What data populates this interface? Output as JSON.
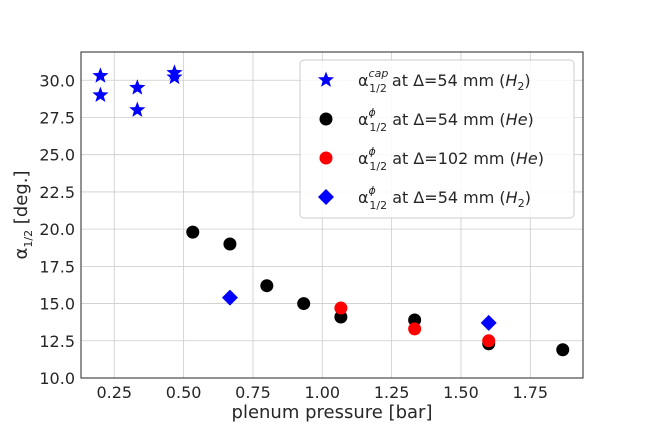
{
  "chart_data": {
    "type": "scatter",
    "xlabel": "plenum pressure [bar]",
    "ylabel": {
      "base": "α",
      "sub": "1/2",
      "rest": " [deg.]"
    },
    "xlim": [
      0.13,
      1.94
    ],
    "ylim": [
      10.0,
      31.9
    ],
    "xticks": [
      0.25,
      0.5,
      0.75,
      1.0,
      1.25,
      1.5,
      1.75
    ],
    "xtick_labels": [
      "0.25",
      "0.50",
      "0.75",
      "1.00",
      "1.25",
      "1.50",
      "1.75"
    ],
    "yticks": [
      10.0,
      12.5,
      15.0,
      17.5,
      20.0,
      22.5,
      25.0,
      27.5,
      30.0
    ],
    "ytick_labels": [
      "10.0",
      "12.5",
      "15.0",
      "17.5",
      "20.0",
      "22.5",
      "25.0",
      "27.5",
      "30.0"
    ],
    "grid": true,
    "legend_position": "top-right",
    "series": [
      {
        "id": "cap-h2-54",
        "legend": {
          "base": "α",
          "sup": "cap",
          "sub": "1/2",
          "text": " at Δ=54 mm (",
          "italic": "H",
          "italic_sub": "2",
          "close": ")"
        },
        "marker": "star",
        "color": "#0000ff",
        "points": [
          [
            0.2,
            30.3
          ],
          [
            0.2,
            29.0
          ],
          [
            0.333,
            29.5
          ],
          [
            0.333,
            28.0
          ],
          [
            0.467,
            30.5
          ],
          [
            0.467,
            30.2
          ]
        ]
      },
      {
        "id": "phi-he-54",
        "legend": {
          "base": "α",
          "sup": "ϕ",
          "sub": "1/2",
          "text": " at Δ=54 mm (",
          "italic": "He",
          "italic_sub": "",
          "close": ")"
        },
        "marker": "circle",
        "color": "#000000",
        "points": [
          [
            0.533,
            19.8
          ],
          [
            0.667,
            19.0
          ],
          [
            0.8,
            16.2
          ],
          [
            0.933,
            15.0
          ],
          [
            1.067,
            14.1
          ],
          [
            1.333,
            13.9
          ],
          [
            1.6,
            12.3
          ],
          [
            1.867,
            11.9
          ]
        ]
      },
      {
        "id": "phi-he-102",
        "legend": {
          "base": "α",
          "sup": "ϕ",
          "sub": "1/2",
          "text": " at Δ=102 mm (",
          "italic": "He",
          "italic_sub": "",
          "close": ")"
        },
        "marker": "circle",
        "color": "#ff0000",
        "points": [
          [
            1.067,
            14.7
          ],
          [
            1.333,
            13.3
          ],
          [
            1.6,
            12.5
          ]
        ]
      },
      {
        "id": "phi-h2-54",
        "legend": {
          "base": "α",
          "sup": "ϕ",
          "sub": "1/2",
          "text": " at Δ=54 mm (",
          "italic": "H",
          "italic_sub": "2",
          "close": ")"
        },
        "marker": "diamond",
        "color": "#0000ff",
        "points": [
          [
            0.667,
            15.4
          ],
          [
            1.6,
            13.7
          ]
        ]
      }
    ]
  }
}
